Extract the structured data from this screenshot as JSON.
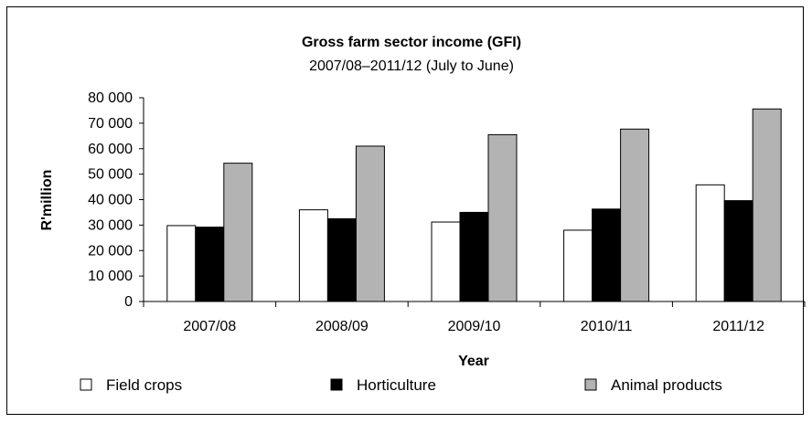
{
  "chart_data": {
    "type": "bar",
    "title": "Gross farm sector income (GFI)",
    "subtitle": "2007/08–2011/12 (July to June)",
    "xlabel": "Year",
    "ylabel": "R'million",
    "ylim": [
      0,
      80000
    ],
    "yticks": [
      0,
      10000,
      20000,
      30000,
      40000,
      50000,
      60000,
      70000,
      80000
    ],
    "ytick_labels": [
      "0",
      "10 000",
      "20 000",
      "30 000",
      "40 000",
      "50 000",
      "60 000",
      "70 000",
      "80 000"
    ],
    "categories": [
      "2007/08",
      "2008/09",
      "2009/10",
      "2010/11",
      "2011/12"
    ],
    "series": [
      {
        "name": "Field crops",
        "color": "#ffffff",
        "values": [
          29800,
          36000,
          31200,
          28000,
          45800
        ]
      },
      {
        "name": "Horticulture",
        "color": "#000000",
        "values": [
          29200,
          32500,
          35000,
          36300,
          39600
        ]
      },
      {
        "name": "Animal products",
        "color": "#b3b3b3",
        "values": [
          54300,
          61000,
          65500,
          67700,
          75600
        ]
      }
    ],
    "grid": false,
    "legend_position": "bottom"
  }
}
